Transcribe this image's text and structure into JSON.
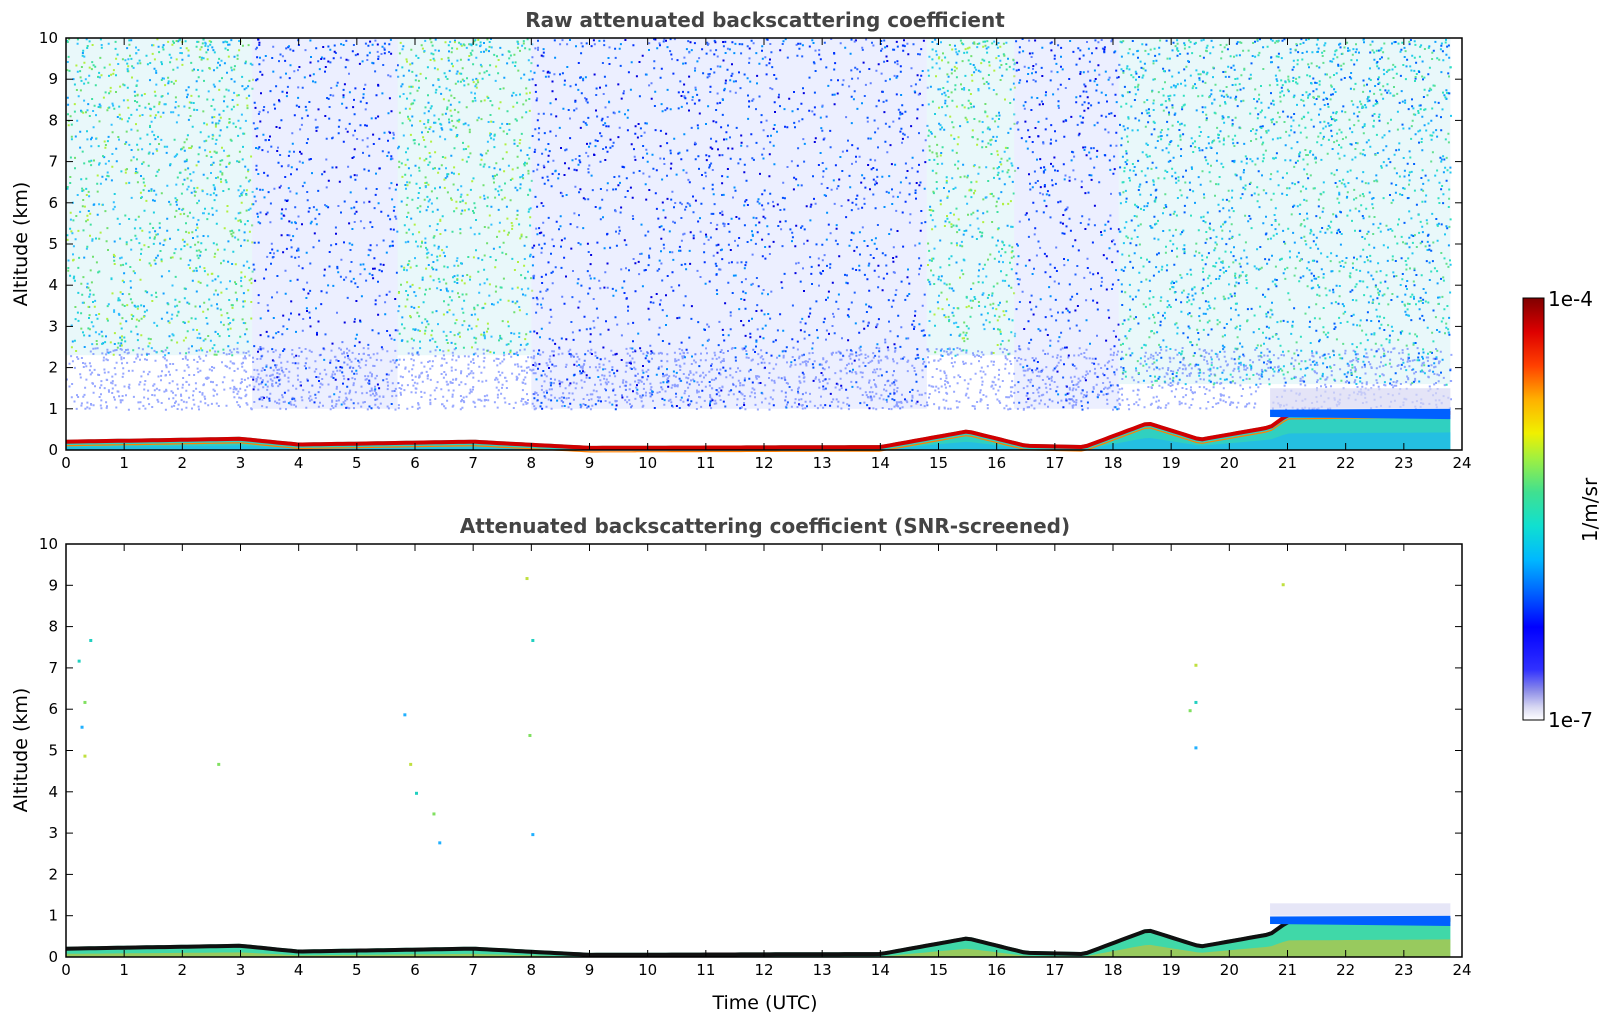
{
  "chart_data": [
    {
      "type": "heatmap",
      "title": "Raw attenuated backscattering coefficient",
      "xlabel": "",
      "ylabel": "Altitude (km)",
      "xlim": [
        0,
        24
      ],
      "ylim": [
        0,
        10
      ],
      "xticks": [
        "0",
        "1",
        "2",
        "3",
        "4",
        "5",
        "6",
        "7",
        "8",
        "9",
        "10",
        "11",
        "12",
        "13",
        "14",
        "15",
        "16",
        "17",
        "18",
        "19",
        "20",
        "21",
        "22",
        "23",
        "24"
      ],
      "yticks": [
        "0",
        "1",
        "2",
        "3",
        "4",
        "5",
        "6",
        "7",
        "8",
        "9",
        "10"
      ],
      "grid": false,
      "cmap": "jet-like (white to dark blue to cyan to green to yellow to red to dark red)",
      "boundary_layer_top_km": [
        {
          "t": 0,
          "h": 0.25
        },
        {
          "t": 3,
          "h": 0.32
        },
        {
          "t": 4,
          "h": 0.18
        },
        {
          "t": 7,
          "h": 0.25
        },
        {
          "t": 9,
          "h": 0.1
        },
        {
          "t": 14,
          "h": 0.12
        },
        {
          "t": 15.5,
          "h": 0.5
        },
        {
          "t": 16.5,
          "h": 0.15
        },
        {
          "t": 17.5,
          "h": 0.12
        },
        {
          "t": 18.6,
          "h": 0.7
        },
        {
          "t": 19.5,
          "h": 0.3
        },
        {
          "t": 20.7,
          "h": 0.6
        },
        {
          "t": 21,
          "h": 0.9
        },
        {
          "t": 23.8,
          "h": 0.95
        }
      ],
      "noise_columns": [
        {
          "t0": 0,
          "t1": 3.2,
          "level": "high"
        },
        {
          "t0": 3.2,
          "t1": 5.7,
          "level": "low"
        },
        {
          "t0": 5.7,
          "t1": 8.0,
          "level": "high"
        },
        {
          "t0": 8.0,
          "t1": 14.8,
          "level": "low"
        },
        {
          "t0": 14.8,
          "t1": 16.3,
          "level": "high"
        },
        {
          "t0": 16.3,
          "t1": 18.1,
          "level": "low"
        },
        {
          "t0": 18.1,
          "t1": 20.0,
          "level": "medium"
        },
        {
          "t0": 20.0,
          "t1": 23.8,
          "level": "medium"
        }
      ]
    },
    {
      "type": "heatmap",
      "title": "Attenuated backscattering coefficient (SNR-screened)",
      "xlabel": "Time (UTC)",
      "ylabel": "Altitude (km)",
      "xlim": [
        0,
        24
      ],
      "ylim": [
        0,
        10
      ],
      "xticks": [
        "0",
        "1",
        "2",
        "3",
        "4",
        "5",
        "6",
        "7",
        "8",
        "9",
        "10",
        "11",
        "12",
        "13",
        "14",
        "15",
        "16",
        "17",
        "18",
        "19",
        "20",
        "21",
        "22",
        "23",
        "24"
      ],
      "yticks": [
        "0",
        "1",
        "2",
        "3",
        "4",
        "5",
        "6",
        "7",
        "8",
        "9",
        "10"
      ],
      "grid": false,
      "sparse_points": [
        {
          "t": 0.2,
          "h": 7.2
        },
        {
          "t": 0.3,
          "h": 6.2
        },
        {
          "t": 0.25,
          "h": 5.6
        },
        {
          "t": 0.3,
          "h": 4.9
        },
        {
          "t": 0.4,
          "h": 7.7
        },
        {
          "t": 2.6,
          "h": 4.7
        },
        {
          "t": 5.8,
          "h": 5.9
        },
        {
          "t": 5.9,
          "h": 4.7
        },
        {
          "t": 6.0,
          "h": 4.0
        },
        {
          "t": 6.3,
          "h": 3.5
        },
        {
          "t": 6.4,
          "h": 2.8
        },
        {
          "t": 7.9,
          "h": 9.2
        },
        {
          "t": 8.0,
          "h": 7.7
        },
        {
          "t": 7.95,
          "h": 5.4
        },
        {
          "t": 8.0,
          "h": 3.0
        },
        {
          "t": 19.4,
          "h": 7.1
        },
        {
          "t": 19.4,
          "h": 6.2
        },
        {
          "t": 19.3,
          "h": 6.0
        },
        {
          "t": 19.4,
          "h": 5.1
        },
        {
          "t": 20.9,
          "h": 9.05
        }
      ]
    }
  ],
  "colorbar": {
    "max_label": "1e-4",
    "min_label": "1e-7",
    "unit_label": "1/m/sr"
  },
  "colors": {
    "title": "#444444",
    "axis": "#000000",
    "background": "#ffffff"
  }
}
